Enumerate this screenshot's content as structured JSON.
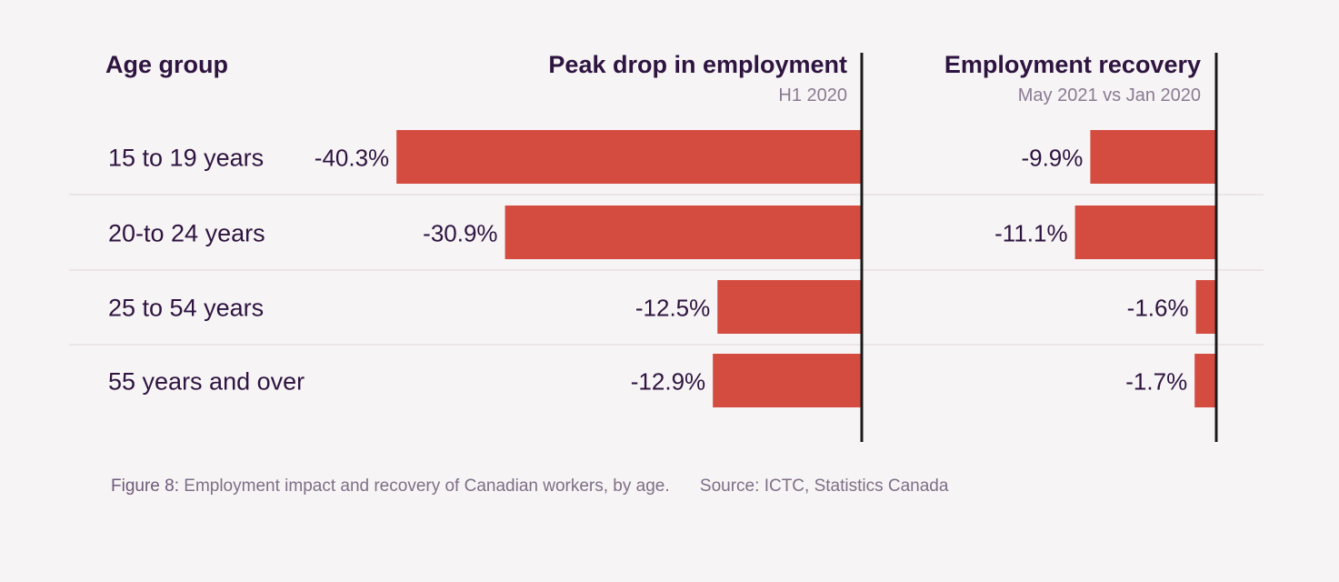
{
  "chart_data": {
    "type": "bar",
    "orientation": "horizontal",
    "categories_header": "Age group",
    "categories": [
      "15 to 19 years",
      "20-to 24 years",
      "25 to 54 years",
      "55 years and over"
    ],
    "series": [
      {
        "name": "Peak drop in employment",
        "subtitle": "H1 2020",
        "values": [
          -40.3,
          -30.9,
          -12.5,
          -12.9
        ],
        "labels": [
          "-40.3%",
          "-30.9%",
          "-12.5%",
          "-12.9%"
        ]
      },
      {
        "name": "Employment recovery",
        "subtitle": "May 2021 vs Jan 2020",
        "values": [
          -9.9,
          -11.1,
          -1.6,
          -1.7
        ],
        "labels": [
          "-9.9%",
          "-11.1%",
          "-1.6%",
          "-1.7%"
        ]
      }
    ],
    "colors": {
      "bar": "#d44b3f",
      "text": "#2e1440",
      "subtext": "#8a7b93"
    }
  },
  "caption": {
    "figure_label": "Figure 8:",
    "figure_text": "Employment impact and recovery of Canadian workers, by age.",
    "source_label": "Source:",
    "source_text": "ICTC, Statistics Canada"
  }
}
